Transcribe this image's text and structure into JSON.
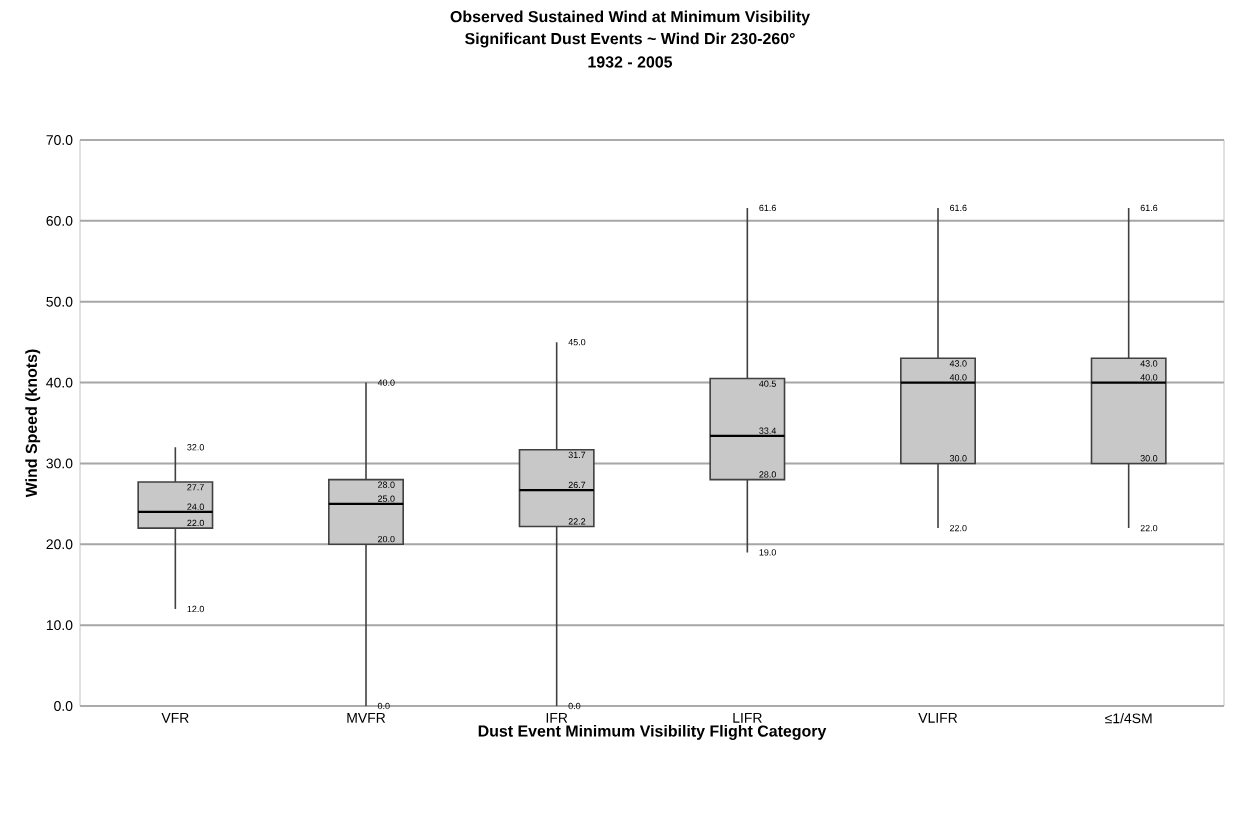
{
  "chart_data": {
    "type": "box",
    "title": "Observed Sustained Wind at Minimum Visibility",
    "subtitle": "Significant Dust Events ~ Wind Dir 230-260°",
    "xlabel": "Dust Event Minimum Visibility Flight Category",
    "ylabel": "Wind Speed (knots)",
    "categories": [
      "VFR",
      "MVFR",
      "IFR",
      "LIFR",
      "VLIFR",
      "≤1/4SM"
    ],
    "color": "#c8c8c8",
    "boxes": [
      {
        "low": 12.0,
        "q1": 22.0,
        "median": 24.0,
        "q3": 27.7,
        "high": 32.0
      },
      {
        "low": 0.0,
        "q1": 20.0,
        "median": 25.0,
        "q3": 28.0,
        "high": 40.0
      },
      {
        "low": 0.0,
        "q1": 22.2,
        "median": 26.7,
        "q3": 31.7,
        "high": 45.0
      },
      {
        "low": 19.0,
        "q1": 28.0,
        "median": 33.4,
        "q3": 40.5,
        "high": 61.6
      },
      {
        "low": 22.0,
        "q1": 30.0,
        "median": 40.0,
        "q3": 43.0,
        "high": 61.6
      },
      {
        "low": 22.0,
        "q1": 30.0,
        "median": 40.0,
        "q3": 43.0,
        "high": 61.6
      }
    ],
    "annotations": [
      "1932 - 2005",
      {
        "text": "32.0",
        "x": "VFR",
        "y": 32.0
      },
      {
        "text": "27.7",
        "x": "VFR",
        "y": 27.7
      },
      {
        "text": "24.0",
        "x": "VFR",
        "y": 24.0
      },
      {
        "text": "22.0",
        "x": "VFR",
        "y": 22.0
      },
      {
        "text": "12.0",
        "x": "VFR",
        "y": 12.0
      },
      {
        "text": "40.0",
        "x": "MVFR",
        "y": 40.0
      },
      {
        "text": "28.0",
        "x": "MVFR",
        "y": 28.0
      },
      {
        "text": "25.0",
        "x": "MVFR",
        "y": 25.0
      },
      {
        "text": "20.0",
        "x": "MVFR",
        "y": 20.0
      },
      {
        "text": "0.0",
        "x": "MVFR",
        "y": 0.0
      },
      {
        "text": "45.0",
        "x": "IFR",
        "y": 45.0
      },
      {
        "text": "31.7",
        "x": "IFR",
        "y": 31.7
      },
      {
        "text": "26.7",
        "x": "IFR",
        "y": 26.7
      },
      {
        "text": "22.2",
        "x": "IFR",
        "y": 22.2
      },
      {
        "text": "0.0",
        "x": "IFR",
        "y": 0.0
      },
      {
        "text": "61.6",
        "x": "LIFR",
        "y": 61.6
      },
      {
        "text": "40.5",
        "x": "LIFR",
        "y": 40.5
      },
      {
        "text": "33.4",
        "x": "LIFR",
        "y": 33.4
      },
      {
        "text": "28.0",
        "x": "LIFR",
        "y": 28.0
      },
      {
        "text": "19.0",
        "x": "LIFR",
        "y": 19.0
      },
      {
        "text": "61.6",
        "x": "VLIFR",
        "y": 61.6
      },
      {
        "text": "43.0",
        "x": "VLIFR",
        "y": 43.0
      },
      {
        "text": "40.0",
        "x": "VLIFR",
        "y": 40.0
      },
      {
        "text": "30.0",
        "x": "VLIFR",
        "y": 30.0
      },
      {
        "text": "22.0",
        "x": "VLIFR",
        "y": 22.0
      },
      {
        "text": "61.6",
        "x": "≤1/4SM",
        "y": 61.6
      },
      {
        "text": "43.0",
        "x": "≤1/4SM",
        "y": 43.0
      },
      {
        "text": "40.0",
        "x": "≤1/4SM",
        "y": 40.0
      },
      {
        "text": "30.0",
        "x": "≤1/4SM",
        "y": 30.0
      },
      {
        "text": "22.0",
        "x": "≤1/4SM",
        "y": 22.0
      }
    ],
    "ylim": [
      0,
      70
    ],
    "yticks": [
      {
        "value": 0,
        "label": "0.0"
      },
      {
        "value": 10,
        "label": "10.0"
      },
      {
        "value": 20,
        "label": "20.0"
      },
      {
        "value": 30,
        "label": "30.0"
      },
      {
        "value": 40,
        "label": "40.0"
      },
      {
        "value": 50,
        "label": "50.0"
      },
      {
        "value": 60,
        "label": "60.0"
      },
      {
        "value": 70,
        "label": "70.0"
      }
    ],
    "grid": "y"
  }
}
